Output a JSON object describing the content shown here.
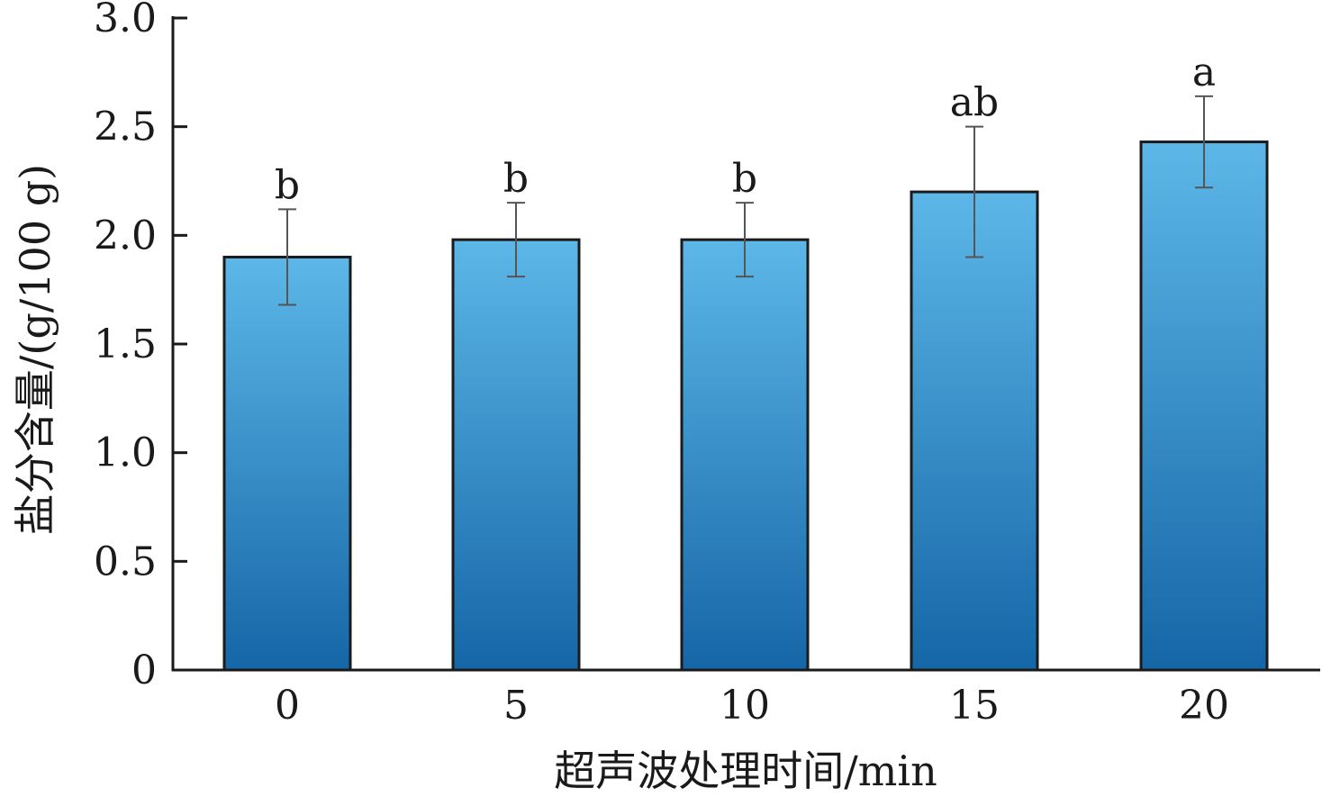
{
  "chart_data": {
    "type": "bar",
    "categories": [
      "0",
      "5",
      "10",
      "15",
      "20"
    ],
    "values": [
      1.9,
      1.98,
      1.98,
      2.2,
      2.43
    ],
    "errors": [
      0.22,
      0.17,
      0.17,
      0.3,
      0.21
    ],
    "significance": [
      "b",
      "b",
      "b",
      "ab",
      "a"
    ],
    "xlabel": "超声波处理时间/min",
    "ylabel": "盐分含量/(g/100 g)",
    "ylim": [
      0,
      3.0
    ],
    "yticks": [
      "0",
      "0.5",
      "1.0",
      "1.5",
      "2.0",
      "2.5",
      "3.0"
    ],
    "ytick_values": [
      0,
      0.5,
      1.0,
      1.5,
      2.0,
      2.5,
      3.0
    ],
    "grid": false,
    "colors": {
      "bar_top": "#5cb7e8",
      "bar_bottom": "#1566a6",
      "bar_edge": "#1b1b1b",
      "axis": "#1a1a1a",
      "error_bar": "#555555"
    }
  }
}
